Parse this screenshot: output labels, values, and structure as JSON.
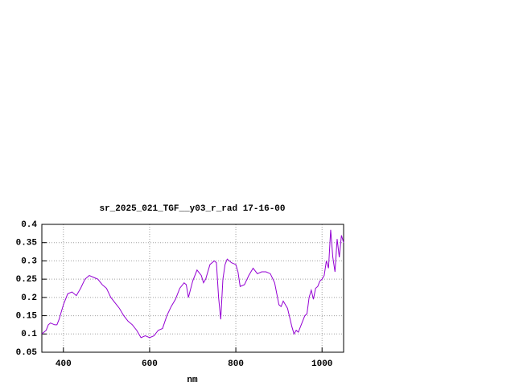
{
  "chart_data": {
    "type": "line",
    "title": "sr_2025_021_TGF__y03_r_rad 17-16-00",
    "x_label": "nm",
    "x": [
      350,
      360,
      365,
      370,
      380,
      385,
      390,
      400,
      410,
      420,
      430,
      440,
      450,
      460,
      470,
      480,
      490,
      500,
      510,
      520,
      530,
      540,
      550,
      560,
      570,
      580,
      590,
      600,
      610,
      620,
      630,
      640,
      650,
      660,
      670,
      680,
      685,
      690,
      700,
      710,
      720,
      725,
      730,
      740,
      750,
      755,
      760,
      765,
      770,
      775,
      780,
      790,
      800,
      805,
      810,
      820,
      830,
      840,
      850,
      860,
      870,
      880,
      890,
      900,
      905,
      910,
      920,
      930,
      935,
      940,
      945,
      950,
      960,
      965,
      970,
      975,
      980,
      985,
      990,
      995,
      1000,
      1005,
      1010,
      1015,
      1020,
      1025,
      1030,
      1035,
      1040,
      1045,
      1050
    ],
    "series": [
      {
        "color": "#9400d3",
        "values": [
          0.1,
          0.11,
          0.125,
          0.13,
          0.125,
          0.125,
          0.14,
          0.18,
          0.21,
          0.215,
          0.205,
          0.225,
          0.25,
          0.26,
          0.255,
          0.25,
          0.235,
          0.225,
          0.2,
          0.185,
          0.17,
          0.15,
          0.135,
          0.125,
          0.11,
          0.09,
          0.095,
          0.09,
          0.095,
          0.11,
          0.115,
          0.15,
          0.175,
          0.195,
          0.225,
          0.24,
          0.235,
          0.2,
          0.245,
          0.275,
          0.26,
          0.24,
          0.25,
          0.29,
          0.3,
          0.295,
          0.2,
          0.14,
          0.25,
          0.29,
          0.305,
          0.295,
          0.29,
          0.27,
          0.23,
          0.235,
          0.26,
          0.28,
          0.265,
          0.27,
          0.27,
          0.265,
          0.24,
          0.18,
          0.175,
          0.19,
          0.17,
          0.12,
          0.1,
          0.11,
          0.105,
          0.12,
          0.15,
          0.155,
          0.2,
          0.22,
          0.195,
          0.225,
          0.23,
          0.245,
          0.25,
          0.26,
          0.3,
          0.28,
          0.385,
          0.31,
          0.27,
          0.36,
          0.31,
          0.37,
          0.35
        ]
      }
    ],
    "xlim": [
      350,
      1050
    ],
    "xticks": [
      400,
      600,
      800,
      1000
    ],
    "ylim": [
      0.05,
      0.4
    ],
    "yticks": [
      0.05,
      0.1,
      0.15,
      0.2,
      0.25,
      0.3,
      0.35,
      0.4
    ],
    "grid": true
  }
}
